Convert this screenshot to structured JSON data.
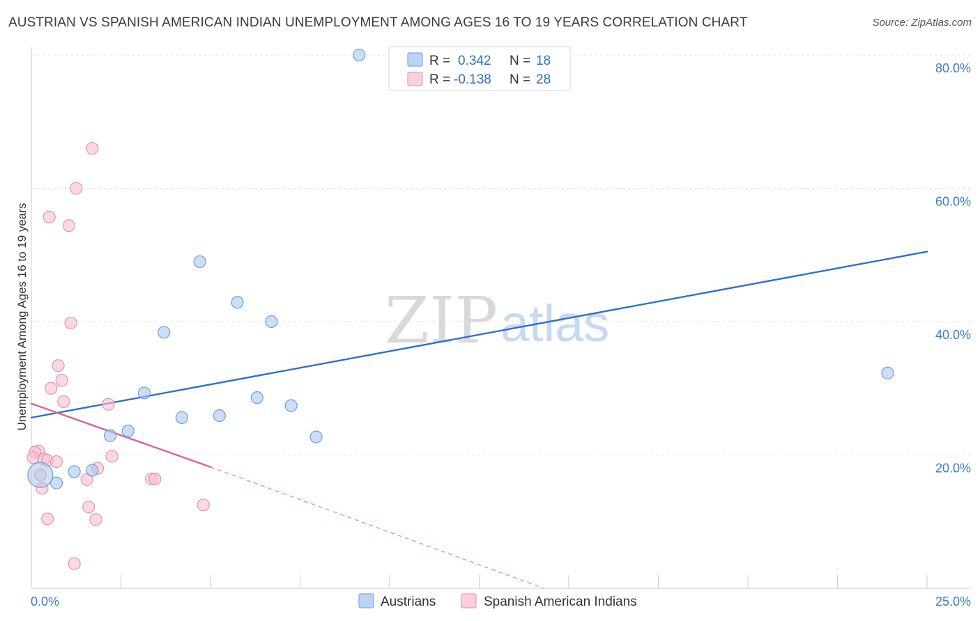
{
  "chart_data": {
    "type": "scatter",
    "title": "AUSTRIAN VS SPANISH AMERICAN INDIAN UNEMPLOYMENT AMONG AGES 16 TO 19 YEARS CORRELATION CHART",
    "source": "Source: ZipAtlas.com",
    "ylabel": "Unemployment Among Ages 16 to 19 years",
    "xlabel": "",
    "xlim": [
      0,
      25
    ],
    "ylim": [
      0,
      80
    ],
    "x_tick_labels": [
      "0.0%",
      "25.0%"
    ],
    "y_ticks": [
      {
        "value": 20,
        "label": "20.0%"
      },
      {
        "value": 40,
        "label": "40.0%"
      },
      {
        "value": 60,
        "label": "60.0%"
      },
      {
        "value": 80,
        "label": "80.0%"
      }
    ],
    "watermark": {
      "part1": "ZIP",
      "part2": "atlas"
    },
    "legend": {
      "rows": [
        {
          "r_label": "R =",
          "r_value": "0.342",
          "n_label": "N =",
          "n_value": "18"
        },
        {
          "r_label": "R =",
          "r_value": "-0.138",
          "n_label": "N =",
          "n_value": "28"
        }
      ]
    },
    "series": [
      {
        "name": "Austrians",
        "color": "#a9c8ef",
        "stroke": "#6d9fdc",
        "line_color": "#2e6fd0",
        "trend": {
          "x0": 0,
          "y0": 25.6,
          "x1": 25,
          "y1": 50.5
        },
        "points": [
          {
            "x": 9.15,
            "y": 80.0
          },
          {
            "x": 4.7,
            "y": 49.0
          },
          {
            "x": 5.75,
            "y": 42.9
          },
          {
            "x": 6.7,
            "y": 40.0
          },
          {
            "x": 3.7,
            "y": 38.4
          },
          {
            "x": 3.15,
            "y": 29.3
          },
          {
            "x": 6.3,
            "y": 28.6
          },
          {
            "x": 7.25,
            "y": 27.4
          },
          {
            "x": 5.25,
            "y": 25.9
          },
          {
            "x": 4.2,
            "y": 25.6
          },
          {
            "x": 2.7,
            "y": 23.6
          },
          {
            "x": 2.2,
            "y": 22.9
          },
          {
            "x": 7.95,
            "y": 22.7
          },
          {
            "x": 1.7,
            "y": 17.7
          },
          {
            "x": 1.2,
            "y": 17.5
          },
          {
            "x": 0.7,
            "y": 15.8
          },
          {
            "x": 0.25,
            "y": 17.0,
            "large": true
          },
          {
            "x": 23.9,
            "y": 32.3
          }
        ]
      },
      {
        "name": "Spanish American Indians",
        "color": "#f8bfd1",
        "stroke": "#e692ae",
        "line_color": "#e0608e",
        "trend": {
          "x0": 0,
          "y0": 27.7,
          "x1": 5.0,
          "y1": 18.2
        },
        "trend_dashed": {
          "x0": 5.0,
          "y0": 18.2,
          "x1": 14.3,
          "y1": 0
        },
        "points": [
          {
            "x": 1.7,
            "y": 66.0
          },
          {
            "x": 1.25,
            "y": 60.0
          },
          {
            "x": 0.5,
            "y": 55.7
          },
          {
            "x": 1.05,
            "y": 54.4
          },
          {
            "x": 1.1,
            "y": 39.8
          },
          {
            "x": 0.75,
            "y": 33.4
          },
          {
            "x": 0.85,
            "y": 31.2
          },
          {
            "x": 0.55,
            "y": 30.0
          },
          {
            "x": 0.9,
            "y": 28.0
          },
          {
            "x": 2.15,
            "y": 27.6
          },
          {
            "x": 0.2,
            "y": 20.6
          },
          {
            "x": 0.1,
            "y": 20.4
          },
          {
            "x": 0.05,
            "y": 19.6
          },
          {
            "x": 0.35,
            "y": 19.4
          },
          {
            "x": 0.45,
            "y": 19.2
          },
          {
            "x": 0.7,
            "y": 19.0
          },
          {
            "x": 2.25,
            "y": 19.8
          },
          {
            "x": 1.85,
            "y": 18.0
          },
          {
            "x": 0.25,
            "y": 17.0
          },
          {
            "x": 1.55,
            "y": 16.3
          },
          {
            "x": 3.35,
            "y": 16.4
          },
          {
            "x": 3.45,
            "y": 16.4
          },
          {
            "x": 0.3,
            "y": 15.0
          },
          {
            "x": 4.8,
            "y": 12.5
          },
          {
            "x": 1.6,
            "y": 12.2
          },
          {
            "x": 0.45,
            "y": 10.4
          },
          {
            "x": 1.8,
            "y": 10.3
          },
          {
            "x": 1.2,
            "y": 3.7
          }
        ]
      }
    ]
  }
}
